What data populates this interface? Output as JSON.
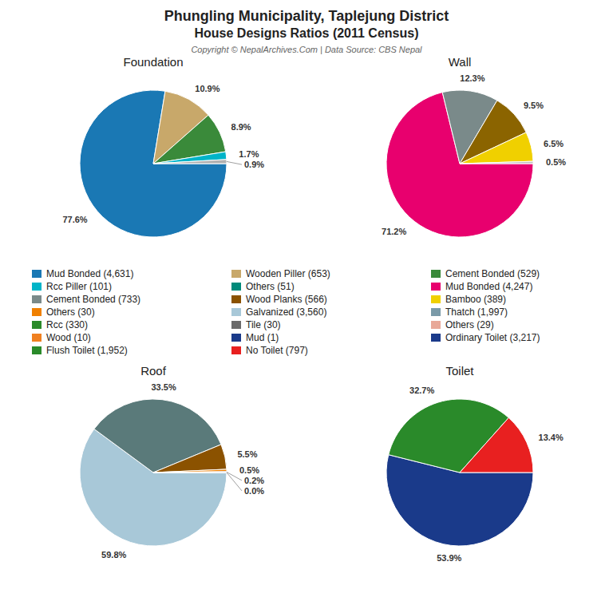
{
  "title": "Phungling Municipality, Taplejung District",
  "subtitle": "House Designs Ratios (2011 Census)",
  "annotations": [
    "Copyright © NepalArchives.Com | Data Source: CBS Nepal"
  ],
  "chart_data": [
    {
      "type": "pie",
      "title": "Foundation",
      "values": [
        77.6,
        10.9,
        8.9,
        1.7,
        0.9
      ],
      "value_labels": [
        "77.6%",
        "10.9%",
        "8.9%",
        "1.7%",
        "0.9%"
      ],
      "colors": [
        "#1a78b4",
        "#c8a86a",
        "#3a8a3a",
        "#00b4c8",
        "#b0b0b0"
      ],
      "data_labels": true
    },
    {
      "type": "pie",
      "title": "Wall",
      "values": [
        71.2,
        12.3,
        9.5,
        6.5,
        0.5
      ],
      "value_labels": [
        "71.2%",
        "12.3%",
        "9.5%",
        "6.5%",
        "0.5%"
      ],
      "colors": [
        "#e8006e",
        "#7a8a8a",
        "#8b6400",
        "#f0d000",
        "#c0c0c0"
      ],
      "data_labels": true
    },
    {
      "type": "pie",
      "title": "Roof",
      "values": [
        59.8,
        33.5,
        5.5,
        0.5,
        0.2,
        0.0
      ],
      "value_labels": [
        "59.8%",
        "33.5%",
        "5.5%",
        "0.5%",
        "0.2%",
        "0.0%"
      ],
      "colors": [
        "#a8c8d8",
        "#5a7a7a",
        "#8b5200",
        "#f08000",
        "#1a3a8a",
        "#e82020"
      ],
      "data_labels": true
    },
    {
      "type": "pie",
      "title": "Toilet",
      "values": [
        53.9,
        32.7,
        13.4
      ],
      "value_labels": [
        "53.9%",
        "32.7%",
        "13.4%"
      ],
      "colors": [
        "#1a3a8a",
        "#2a8a2a",
        "#e82020"
      ],
      "data_labels": true
    }
  ],
  "legend_items": [
    {
      "label": "Mud Bonded (4,631)",
      "color": "#1a78b4"
    },
    {
      "label": "Wooden Piller (653)",
      "color": "#c8a86a"
    },
    {
      "label": "Cement Bonded (529)",
      "color": "#3a8a3a"
    },
    {
      "label": "Rcc Piller (101)",
      "color": "#00b4c8"
    },
    {
      "label": "Others (51)",
      "color": "#008a7a"
    },
    {
      "label": "Mud Bonded (4,247)",
      "color": "#e8006e"
    },
    {
      "label": "Cement Bonded (733)",
      "color": "#7a8a8a"
    },
    {
      "label": "Wood Planks (566)",
      "color": "#8b5200"
    },
    {
      "label": "Bamboo (389)",
      "color": "#f0d000"
    },
    {
      "label": "Others (30)",
      "color": "#f08000"
    },
    {
      "label": "Galvanized (3,560)",
      "color": "#a8c8d8"
    },
    {
      "label": "Thatch (1,997)",
      "color": "#7a9aa8"
    },
    {
      "label": "Rcc (330)",
      "color": "#2a8a2a"
    },
    {
      "label": "Tile (30)",
      "color": "#6a6a6a"
    },
    {
      "label": "Others (29)",
      "color": "#e8a898"
    },
    {
      "label": "Wood (10)",
      "color": "#f08020"
    },
    {
      "label": "Mud (1)",
      "color": "#1a3a8a"
    },
    {
      "label": "Ordinary Toilet (3,217)",
      "color": "#1a3a8a"
    },
    {
      "label": "Flush Toilet (1,952)",
      "color": "#2a8a2a"
    },
    {
      "label": "No Toilet (797)",
      "color": "#e82020"
    }
  ]
}
